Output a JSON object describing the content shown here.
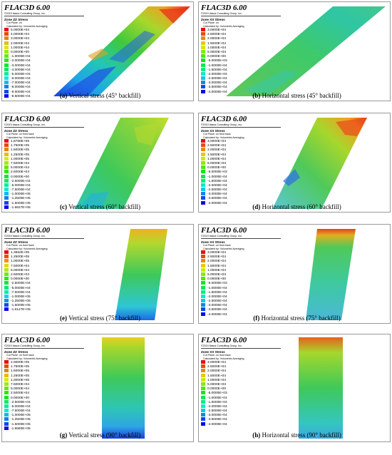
{
  "logo_text": "FLAC3D 6.00",
  "copyright": "©2019 Itasca Consulting Group, Inc.",
  "calc_text": "Calculated by: Volumetric Averaging",
  "panels": [
    {
      "id": "a",
      "zone": "Zone ZZ Stress",
      "cut": "Cut Plane: on",
      "legend": [
        "5.0000E+04",
        "4.0000E+04",
        "3.0000E+04",
        "2.0000E+04",
        "1.0000E+04",
        "0.0000E+00",
        "-1.0000E+04",
        "-2.0000E+04",
        "-3.0000E+04",
        "-4.0000E+04",
        "-5.0000E+04",
        "-6.0000E+04",
        "-7.0000E+04",
        "-8.0000E+04",
        "-9.0000E+04",
        "-9.5000E+04"
      ],
      "caption_letter": "(a)",
      "caption_text": " Vertical stress (45° backfill)"
    },
    {
      "id": "b",
      "zone": "Zone XX Stress",
      "cut": "Cut Plane: on",
      "legend": [
        "3.0000E+04",
        "2.5000E+04",
        "2.0000E+04",
        "1.5000E+04",
        "1.0000E+04",
        "5.0000E+03",
        "0.0000E+00",
        "-5.0000E+03",
        "-1.0000E+04",
        "-1.5000E+04",
        "-2.0000E+04",
        "-2.5000E+04",
        "-3.0000E+04",
        "-3.5000E+04",
        "-4.0000E+04"
      ],
      "caption_letter": "(b)",
      "caption_text": " Horizontal stress (45° backfill)"
    },
    {
      "id": "c",
      "zone": "Zone ZZ Stress",
      "cut": "Cut Plane: on front back",
      "legend": [
        "1.8766E+05",
        "1.7500E+05",
        "1.5000E+05",
        "1.2500E+05",
        "1.0000E+05",
        "7.5000E+04",
        "5.0000E+04",
        "2.5000E+04",
        "0.0000E+00",
        "-2.5000E+04",
        "-5.0000E+04",
        "-7.5000E+04",
        "-1.0000E+05",
        "-1.2500E+05",
        "-1.5000E+05",
        "-1.6627E+05"
      ],
      "caption_letter": "(c)",
      "caption_text": " Vertical stress (60° backfill)"
    },
    {
      "id": "d",
      "zone": "Zone XX Stress",
      "cut": "Cut Plane: on front back",
      "legend": [
        "3.0000E+04",
        "2.5000E+04",
        "2.0000E+04",
        "1.5000E+04",
        "1.0000E+04",
        "5.0000E+03",
        "0.0000E+00",
        "-5.0000E+03",
        "-1.0000E+04",
        "-1.5000E+04",
        "-2.0000E+04",
        "-2.5000E+04",
        "-3.0000E+04",
        "-3.5000E+04",
        "-4.0000E+04"
      ],
      "caption_letter": "(d)",
      "caption_text": " Horizontal stress (60° backfill)"
    },
    {
      "id": "e",
      "zone": "Zone ZZ Stress",
      "cut": "Cut Plane: on front back",
      "legend": [
        "1.3552E+05",
        "1.2500E+05",
        "1.0000E+05",
        "7.5000E+04",
        "5.0000E+04",
        "2.5000E+04",
        "0.0000E+00",
        "-2.5000E+04",
        "-5.0000E+04",
        "-7.5000E+04",
        "-1.0000E+05",
        "-1.2500E+05",
        "-1.5000E+05",
        "-1.6127E+05"
      ],
      "caption_letter": "(e)",
      "caption_text": " Vertical stress (75° backfill)"
    },
    {
      "id": "f",
      "zone": "Zone XX Stress",
      "cut": "Cut Plane: on front back",
      "legend": [
        "3.0000E+04",
        "2.5000E+04",
        "2.0000E+04",
        "1.5000E+04",
        "1.0000E+04",
        "5.0000E+03",
        "0.0000E+00",
        "-5.0000E+03",
        "-1.0000E+04",
        "-1.5000E+04",
        "-2.0000E+04",
        "-2.5000E+04",
        "-3.0000E+04",
        "-3.5000E+04",
        "-4.0000E+04"
      ],
      "caption_letter": "(f)",
      "caption_text": " Horizontal stress (75° backfill)"
    },
    {
      "id": "g",
      "zone": "Zone ZZ Stress",
      "cut": "Cut Plane: on front back",
      "legend": [
        "2.0000E+05",
        "1.7500E+05",
        "1.5000E+05",
        "1.2500E+05",
        "1.0000E+05",
        "7.5000E+04",
        "5.0000E+04",
        "2.5000E+04",
        "0.0000E+00",
        "-2.5000E+04",
        "-5.0000E+04",
        "-7.5000E+04",
        "-1.0000E+05",
        "-1.2500E+05",
        "-1.5000E+05",
        "-1.6580E+05"
      ],
      "caption_letter": "(g)",
      "caption_text": " Vertical stress (90° backfill)"
    },
    {
      "id": "h",
      "zone": "Zone XX Stress",
      "cut": "Cut Plane: on front back",
      "legend": [
        "3.0000E+04",
        "2.5000E+04",
        "2.0000E+04",
        "1.5000E+04",
        "1.0000E+04",
        "5.0000E+03",
        "0.0000E+00",
        "-5.0000E+03",
        "-1.0000E+04",
        "-1.5000E+04",
        "-2.0000E+04",
        "-2.5000E+04",
        "-3.0000E+04",
        "-3.5000E+04",
        "-4.0000E+04"
      ],
      "caption_letter": "(h)",
      "caption_text": " Horizontal stress (90° backfill)"
    }
  ]
}
